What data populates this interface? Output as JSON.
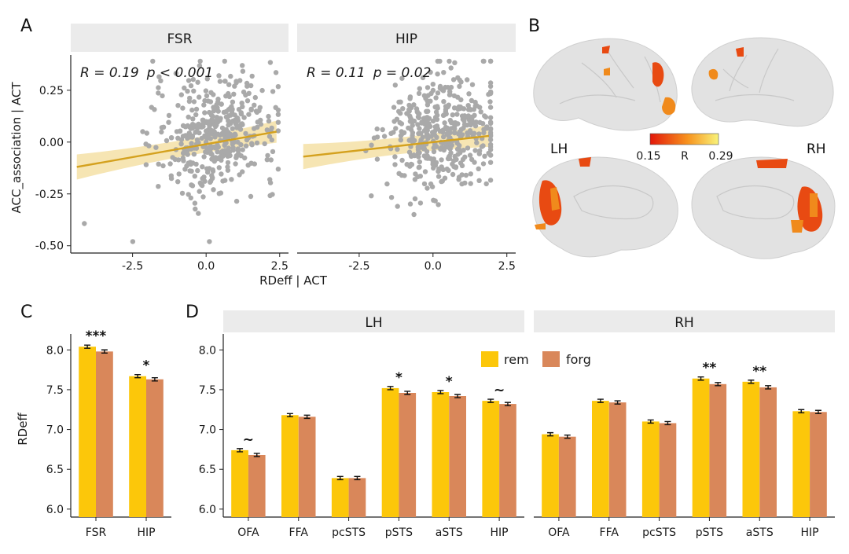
{
  "panels": {
    "a": "A",
    "b": "B",
    "c": "C",
    "d": "D"
  },
  "colors": {
    "rem": "#fcc70a",
    "forg": "#d9875a",
    "point": "#a9a9a9",
    "fit": "#d4a11e",
    "band": "#f3dc9a",
    "strip": "#ebebeb"
  },
  "chart_data": [
    {
      "type": "scatter",
      "id": "panel_a",
      "facets": [
        {
          "name": "FSR",
          "stat_r": "R = 0.19",
          "stat_p": "p < 0.001",
          "fit": {
            "x": [
              -4.5,
              2.5
            ],
            "y": [
              -0.12,
              0.05
            ]
          }
        },
        {
          "name": "HIP",
          "stat_r": "R = 0.11",
          "stat_p": "p = 0.02",
          "fit": {
            "x": [
              -4.5,
              2.0
            ],
            "y": [
              -0.07,
              0.03
            ]
          }
        }
      ],
      "xlabel": "RDeff | ACT",
      "ylabel": "ACC_association | ACT",
      "xlim": [
        -4.6,
        2.8
      ],
      "ylim": [
        -0.52,
        0.42
      ],
      "xticks": [
        -2.5,
        0.0,
        2.5
      ],
      "xtick_labels": [
        "-2.5",
        "0.0",
        "2.5"
      ],
      "yticks": [
        -0.5,
        -0.25,
        0.0,
        0.25
      ],
      "ytick_labels": [
        "-0.50",
        "-0.25",
        "0.00",
        "0.25"
      ]
    },
    {
      "type": "bar",
      "id": "panel_c",
      "categories": [
        "FSR",
        "HIP"
      ],
      "series": [
        {
          "name": "rem",
          "values": [
            8.04,
            7.67
          ],
          "errors": [
            0.02,
            0.02
          ]
        },
        {
          "name": "forg",
          "values": [
            7.98,
            7.63
          ],
          "errors": [
            0.02,
            0.02
          ]
        }
      ],
      "significance": [
        "***",
        "*"
      ],
      "ylabel": "RDeff",
      "ylim": [
        5.9,
        8.2
      ],
      "yticks": [
        6.0,
        6.5,
        7.0,
        7.5,
        8.0
      ],
      "ytick_labels": [
        "6.0",
        "6.5",
        "7.0",
        "7.5",
        "8.0"
      ]
    },
    {
      "type": "bar",
      "id": "panel_d",
      "facets": [
        {
          "name": "LH",
          "categories": [
            "OFA",
            "FFA",
            "pcSTS",
            "pSTS",
            "aSTS",
            "HIP"
          ],
          "series": [
            {
              "name": "rem",
              "values": [
                6.74,
                7.18,
                6.39,
                7.52,
                7.47,
                7.36
              ],
              "errors": [
                0.02,
                0.02,
                0.02,
                0.02,
                0.02,
                0.02
              ]
            },
            {
              "name": "forg",
              "values": [
                6.68,
                7.16,
                6.39,
                7.46,
                7.42,
                7.32
              ],
              "errors": [
                0.02,
                0.02,
                0.02,
                0.02,
                0.02,
                0.02
              ]
            }
          ],
          "significance": [
            "~",
            "",
            "",
            "*",
            "*",
            "~"
          ]
        },
        {
          "name": "RH",
          "categories": [
            "OFA",
            "FFA",
            "pcSTS",
            "pSTS",
            "aSTS",
            "HIP"
          ],
          "series": [
            {
              "name": "rem",
              "values": [
                6.94,
                7.36,
                7.1,
                7.64,
                7.6,
                7.23
              ],
              "errors": [
                0.02,
                0.02,
                0.02,
                0.02,
                0.02,
                0.02
              ]
            },
            {
              "name": "forg",
              "values": [
                6.91,
                7.34,
                7.08,
                7.57,
                7.53,
                7.22
              ],
              "errors": [
                0.02,
                0.02,
                0.02,
                0.02,
                0.02,
                0.02
              ]
            }
          ],
          "significance": [
            "",
            "",
            "",
            "**",
            "**",
            ""
          ]
        }
      ],
      "legend": [
        "rem",
        "forg"
      ],
      "ylim": [
        5.9,
        8.2
      ],
      "yticks": [
        6.0,
        6.5,
        7.0,
        7.5,
        8.0
      ],
      "ytick_labels": [
        "6.0",
        "6.5",
        "7.0",
        "7.5",
        "8.0"
      ]
    }
  ],
  "brain": {
    "left_label": "LH",
    "right_label": "RH",
    "colorbar_min": "0.15",
    "colorbar_max": "0.29",
    "colorbar_label": "R",
    "colorbar_colors": [
      "#e3170a",
      "#f7931e",
      "#f8f37a"
    ]
  }
}
